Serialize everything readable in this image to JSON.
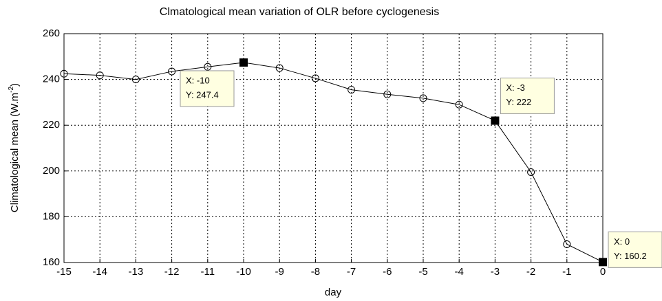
{
  "chart_data": {
    "type": "line",
    "title": "Clmatological mean variation of OLR before cyclogenesis",
    "xlabel": "day",
    "ylabel_parts": [
      "Climatological mean (W.m",
      "-2",
      ")"
    ],
    "x": [
      -15,
      -14,
      -13,
      -12,
      -11,
      -10,
      -9,
      -8,
      -7,
      -6,
      -5,
      -4,
      -3,
      -2,
      -1,
      0
    ],
    "values": [
      242.5,
      241.8,
      240,
      243.5,
      245.5,
      247.4,
      245,
      240.5,
      235.5,
      233.5,
      231.8,
      229,
      222,
      199.5,
      168,
      160.2
    ],
    "color": "#000000",
    "xlim": [
      -15,
      0
    ],
    "xticks": [
      -15,
      -14,
      -13,
      -12,
      -11,
      -10,
      -9,
      -8,
      -7,
      -6,
      -5,
      -4,
      -3,
      -2,
      -1,
      0
    ],
    "ylim": [
      160,
      260
    ],
    "yticks": [
      160,
      180,
      200,
      220,
      240,
      260
    ],
    "grid": true,
    "annotations": [
      {
        "x": -10,
        "y": 247.4,
        "label_x": "X: -10",
        "label_y": "Y: 247.4"
      },
      {
        "x": -3,
        "y": 222,
        "label_x": "X: -3",
        "label_y": "Y: 222"
      },
      {
        "x": 0,
        "y": 160.2,
        "label_x": "X: 0",
        "label_y": "Y: 160.2"
      }
    ]
  }
}
